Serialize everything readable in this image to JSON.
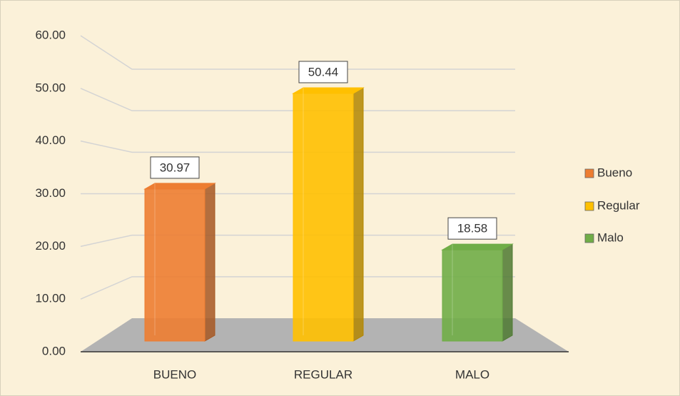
{
  "chart_data": {
    "type": "bar3d",
    "categories": [
      "BUENO",
      "REGULAR",
      "MALO"
    ],
    "values": [
      30.97,
      50.44,
      18.58
    ],
    "colors": [
      "#ed7d31",
      "#ffc000",
      "#70ad47"
    ],
    "legend": [
      "Bueno",
      "Regular",
      "Malo"
    ],
    "ylim": [
      0,
      60
    ],
    "yticks": [
      {
        "value": 0,
        "label": "0.00"
      },
      {
        "value": 10,
        "label": "10.00"
      },
      {
        "value": 20,
        "label": "20.00"
      },
      {
        "value": 30,
        "label": "30.00"
      },
      {
        "value": 40,
        "label": "40.00"
      },
      {
        "value": 50,
        "label": "50.00"
      },
      {
        "value": 60,
        "label": "60.00"
      }
    ],
    "grid": true
  }
}
